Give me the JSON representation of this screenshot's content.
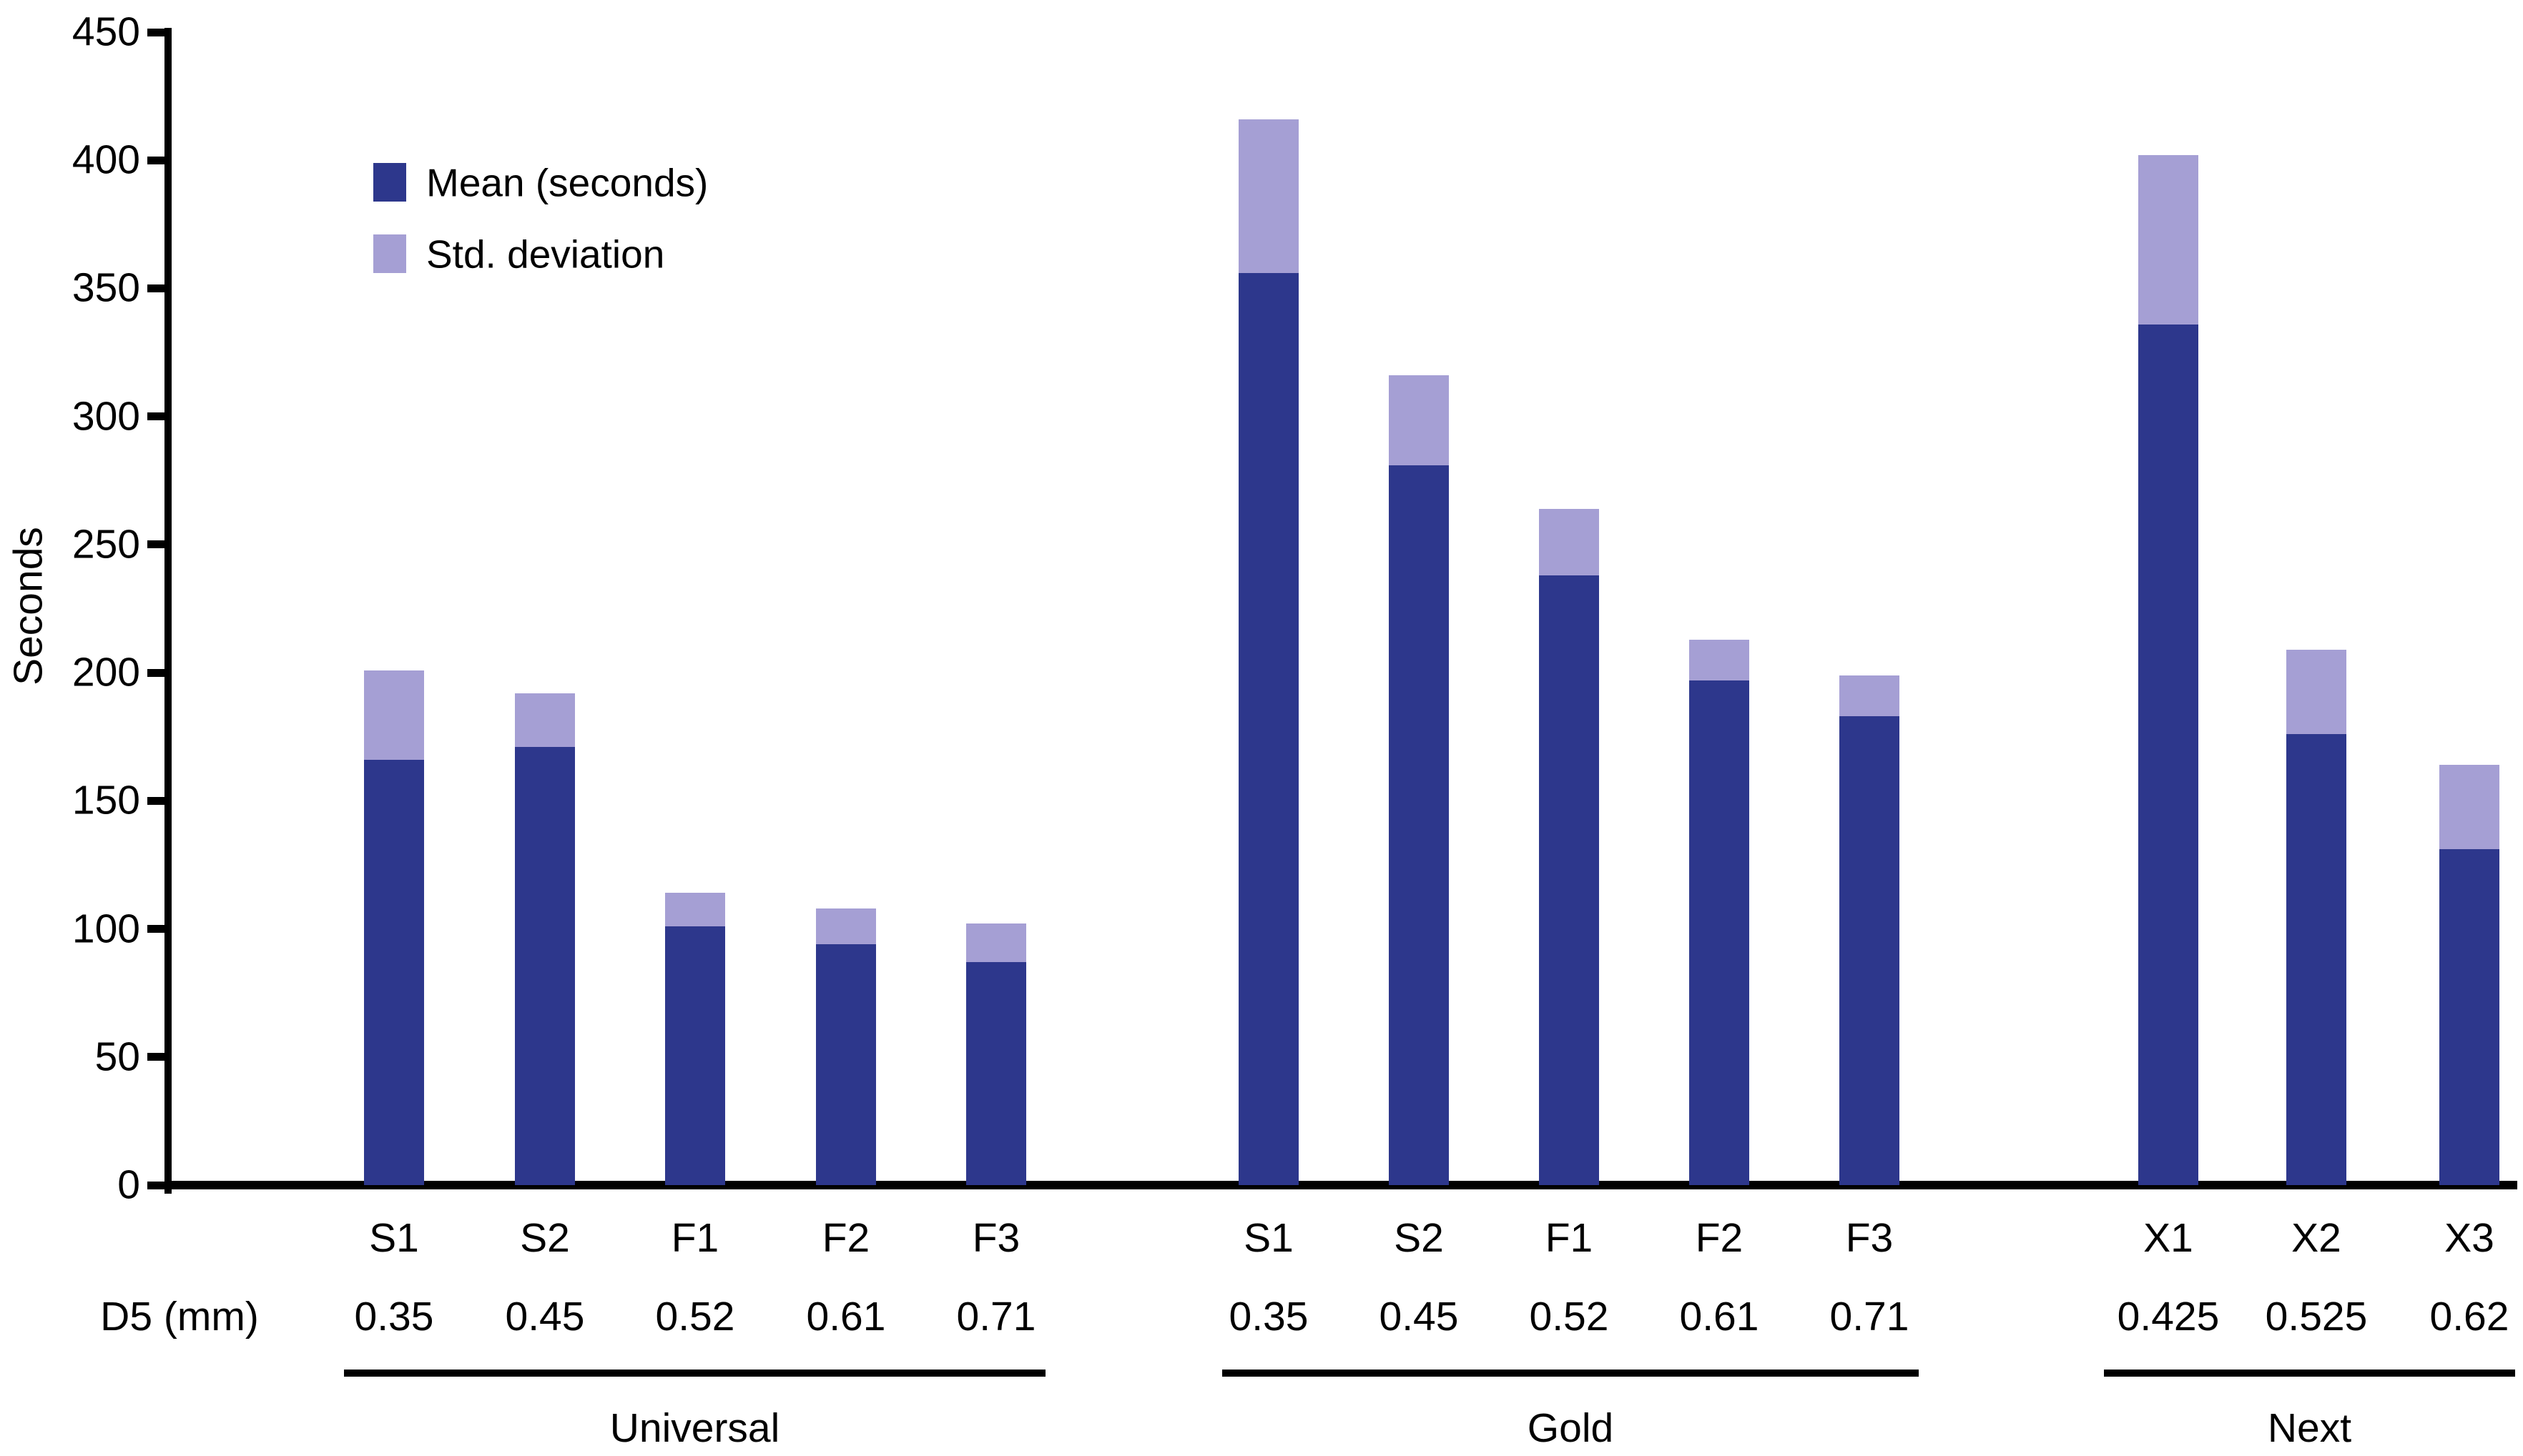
{
  "figure": {
    "background": "#FFFFFF",
    "text_color": "#000000",
    "axis_color": "#000000"
  },
  "chart_data": {
    "type": "bar",
    "stacked": true,
    "title": "",
    "ylabel": "Seconds",
    "xlabel": "",
    "ylim": [
      0,
      450
    ],
    "ytick_step": 50,
    "ytick_labels": [
      "0",
      "50",
      "100",
      "150",
      "200",
      "250",
      "300",
      "350",
      "400",
      "450"
    ],
    "grid": false,
    "legend_position": "upper-left",
    "legend": [
      {
        "label": "Mean (seconds)",
        "color": "#2D378C"
      },
      {
        "label": "Std. deviation",
        "color": "#A59FD4"
      }
    ],
    "row_label": "D5 (mm)",
    "groups": [
      {
        "name": "Universal",
        "bars": [
          {
            "label": "S1",
            "d5": "0.35",
            "mean": 166,
            "std": 35
          },
          {
            "label": "S2",
            "d5": "0.45",
            "mean": 171,
            "std": 21
          },
          {
            "label": "F1",
            "d5": "0.52",
            "mean": 101,
            "std": 13
          },
          {
            "label": "F2",
            "d5": "0.61",
            "mean": 94,
            "std": 14
          },
          {
            "label": "F3",
            "d5": "0.71",
            "mean": 87,
            "std": 15
          }
        ]
      },
      {
        "name": "Gold",
        "bars": [
          {
            "label": "S1",
            "d5": "0.35",
            "mean": 356,
            "std": 60
          },
          {
            "label": "S2",
            "d5": "0.45",
            "mean": 281,
            "std": 35
          },
          {
            "label": "F1",
            "d5": "0.52",
            "mean": 238,
            "std": 26
          },
          {
            "label": "F2",
            "d5": "0.61",
            "mean": 197,
            "std": 16
          },
          {
            "label": "F3",
            "d5": "0.71",
            "mean": 183,
            "std": 16
          }
        ]
      },
      {
        "name": "Next",
        "bars": [
          {
            "label": "X1",
            "d5": "0.425",
            "mean": 336,
            "std": 66
          },
          {
            "label": "X2",
            "d5": "0.525",
            "mean": 176,
            "std": 33
          },
          {
            "label": "X3",
            "d5": "0.62",
            "mean": 131,
            "std": 33
          }
        ]
      }
    ]
  }
}
